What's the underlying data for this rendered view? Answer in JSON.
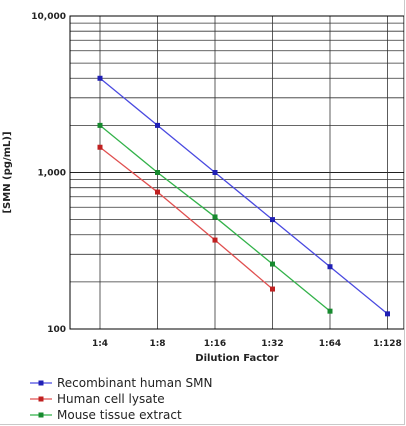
{
  "chart_data": {
    "type": "line",
    "title": "",
    "xlabel": "Dilution Factor",
    "ylabel": "[SMN (pg/mL)]",
    "y_scale": "log",
    "ylim": [
      100,
      10000
    ],
    "y_ticks": [
      {
        "value": 100,
        "label": "100"
      },
      {
        "value": 1000,
        "label": "1,000"
      },
      {
        "value": 10000,
        "label": "10,000"
      }
    ],
    "categories": [
      "1:4",
      "1:8",
      "1:16",
      "1:32",
      "1:64",
      "1:128"
    ],
    "grid": true,
    "legend_position": "bottom",
    "series": [
      {
        "name": "Recombinant human SMN",
        "color": "#4a4ae0",
        "marker_color": "#1f1fb5",
        "values": [
          4000,
          2000,
          1000,
          500,
          250,
          125
        ]
      },
      {
        "name": "Human cell lysate",
        "color": "#e05050",
        "marker_color": "#c02020",
        "values": [
          1450,
          750,
          370,
          180,
          null,
          null
        ]
      },
      {
        "name": "Mouse tissue extract",
        "color": "#33b24a",
        "marker_color": "#168a2e",
        "values": [
          2000,
          1000,
          520,
          260,
          130,
          null
        ]
      }
    ]
  }
}
